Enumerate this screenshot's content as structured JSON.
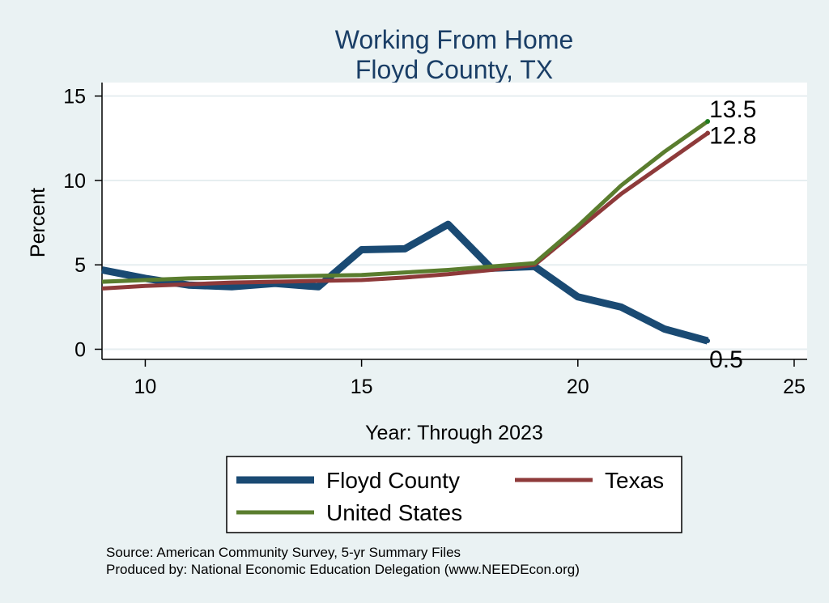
{
  "chart_data": {
    "type": "line",
    "title": "Working From Home",
    "subtitle": "Floyd County, TX",
    "xlabel": "Year: Through 2023",
    "ylabel": "Percent",
    "xlim": [
      9,
      25.3
    ],
    "ylim": [
      -0.6,
      15.8
    ],
    "xticks": [
      10,
      15,
      20,
      25
    ],
    "yticks": [
      0,
      5,
      10,
      15
    ],
    "grid": true,
    "legend_position": "bottom",
    "series": [
      {
        "name": "Floyd County",
        "color": "#1a4a73",
        "x": [
          9,
          10,
          11,
          12,
          13,
          14,
          15,
          16,
          17,
          18,
          19,
          20,
          21,
          22,
          23
        ],
        "y": [
          4.7,
          4.2,
          3.8,
          3.7,
          3.9,
          3.7,
          5.9,
          5.95,
          7.4,
          4.8,
          4.9,
          3.1,
          2.5,
          1.2,
          0.5
        ],
        "end_label": "0.5"
      },
      {
        "name": "Texas",
        "color": "#8e3a3a",
        "x": [
          9,
          10,
          11,
          12,
          13,
          14,
          15,
          16,
          17,
          18,
          19,
          20,
          21,
          22,
          23
        ],
        "y": [
          3.6,
          3.75,
          3.85,
          3.95,
          4.0,
          4.05,
          4.1,
          4.25,
          4.45,
          4.7,
          5.0,
          7.1,
          9.2,
          11.0,
          12.8
        ],
        "end_label": "12.8"
      },
      {
        "name": "United States",
        "color": "#5a7d2e",
        "x": [
          9,
          10,
          11,
          12,
          13,
          14,
          15,
          16,
          17,
          18,
          19,
          20,
          21,
          22,
          23
        ],
        "y": [
          4.0,
          4.1,
          4.2,
          4.25,
          4.3,
          4.35,
          4.4,
          4.55,
          4.7,
          4.9,
          5.1,
          7.3,
          9.7,
          11.7,
          13.5
        ],
        "end_label": "13.5"
      }
    ]
  },
  "source": {
    "line1": "Source: American Community Survey, 5-yr Summary Files",
    "line2": "Produced by: National Economic Education Delegation (www.NEEDEcon.org)"
  }
}
